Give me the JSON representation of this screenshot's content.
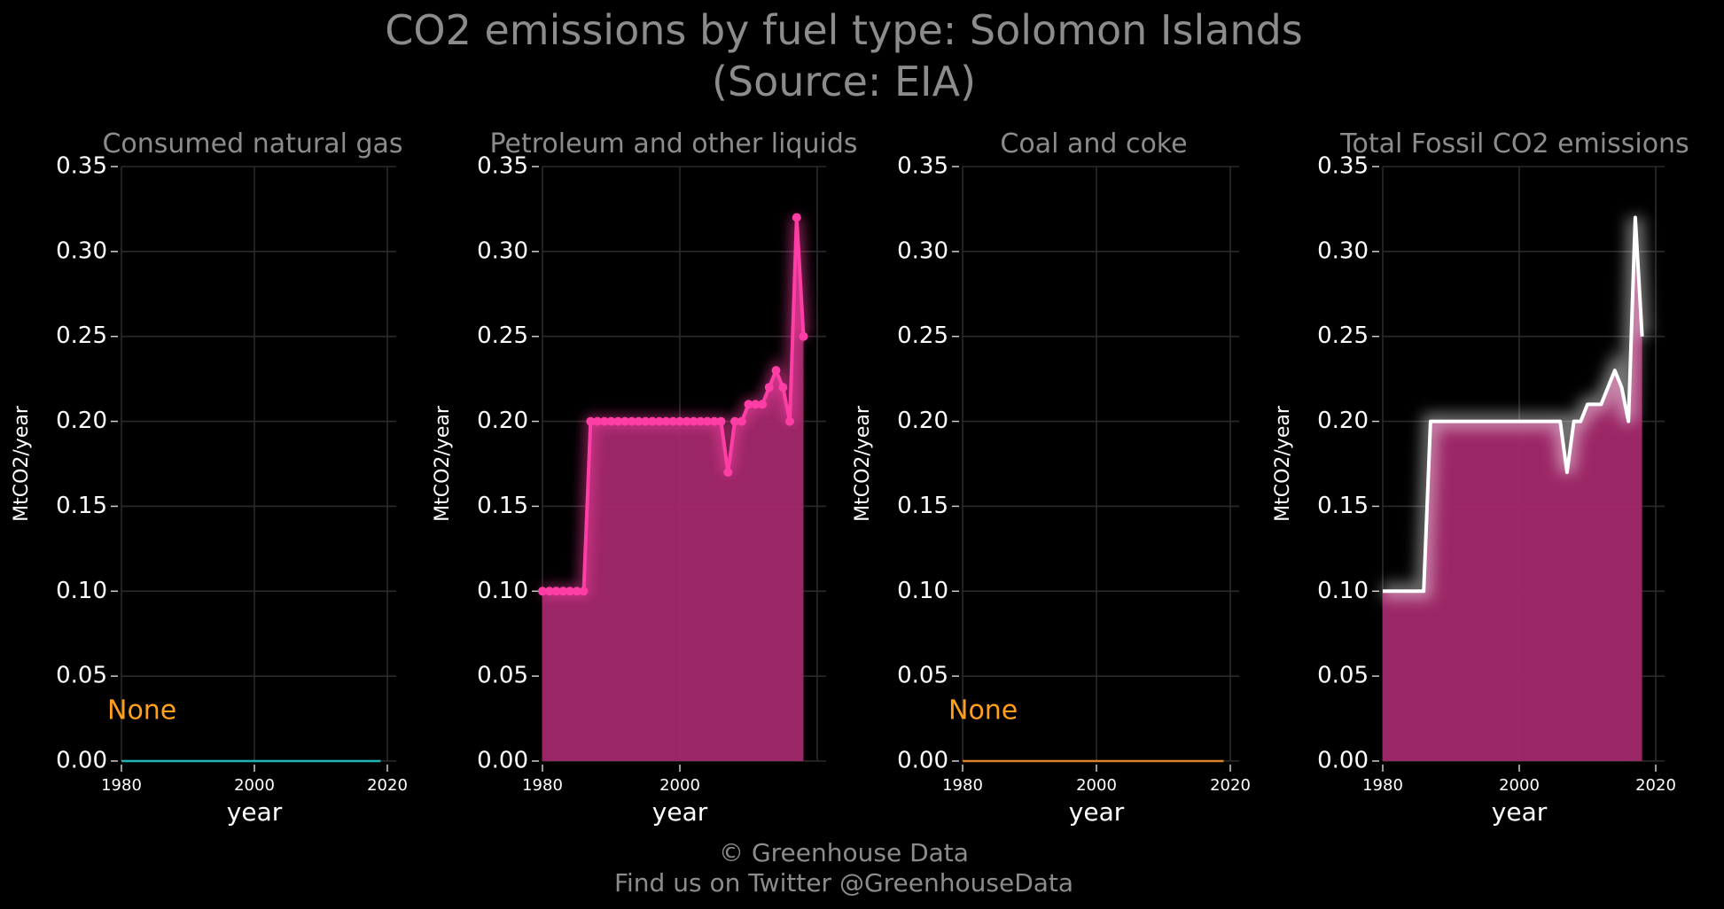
{
  "title_line1": "CO2 emissions by fuel type: Solomon Islands",
  "title_line2": "(Source: EIA)",
  "footer_line1": "© Greenhouse Data",
  "footer_line2": "Find us on Twitter @GreenhouseData",
  "none_text": "None",
  "colors": {
    "background": "#000000",
    "natural_gas": "#1fb5b5",
    "petroleum": "#ff3ea5",
    "coal": "#d9822b",
    "total": "#ffffff",
    "fill": "#a3286b",
    "none_label": "#ff9f1c"
  },
  "chart_data": [
    {
      "type": "line",
      "title": "Consumed natural gas",
      "xlabel": "year",
      "ylabel": "MtCO2/year",
      "xlim": [
        1980,
        2020
      ],
      "ylim": [
        0,
        0.35
      ],
      "xticks": [
        "1980",
        "2000",
        "2020"
      ],
      "yticks": [
        "0.00",
        "0.05",
        "0.10",
        "0.15",
        "0.20",
        "0.25",
        "0.30",
        "0.35"
      ],
      "grid": true,
      "annotation": "None",
      "series": [
        {
          "x": [
            1980,
            2019
          ],
          "y": [
            0,
            0
          ]
        }
      ]
    },
    {
      "type": "area",
      "title": "Petroleum and other liquids",
      "xlabel": "year",
      "ylabel": "MtCO2/year",
      "xlim": [
        1980,
        2020
      ],
      "ylim": [
        0,
        0.35
      ],
      "xticks": [
        "1980",
        "2000"
      ],
      "yticks": [
        "0.00",
        "0.05",
        "0.10",
        "0.15",
        "0.20",
        "0.25",
        "0.30",
        "0.35"
      ],
      "grid": true,
      "series": [
        {
          "x": [
            1980,
            1981,
            1982,
            1983,
            1984,
            1985,
            1986,
            1987,
            1988,
            1989,
            1990,
            1991,
            1992,
            1993,
            1994,
            1995,
            1996,
            1997,
            1998,
            1999,
            2000,
            2001,
            2002,
            2003,
            2004,
            2005,
            2006,
            2007,
            2008,
            2009,
            2010,
            2011,
            2012,
            2013,
            2014,
            2015,
            2016,
            2017,
            2018
          ],
          "y": [
            0.1,
            0.1,
            0.1,
            0.1,
            0.1,
            0.1,
            0.1,
            0.2,
            0.2,
            0.2,
            0.2,
            0.2,
            0.2,
            0.2,
            0.2,
            0.2,
            0.2,
            0.2,
            0.2,
            0.2,
            0.2,
            0.2,
            0.2,
            0.2,
            0.2,
            0.2,
            0.2,
            0.17,
            0.2,
            0.2,
            0.21,
            0.21,
            0.21,
            0.22,
            0.23,
            0.22,
            0.2,
            0.32,
            0.25
          ]
        }
      ]
    },
    {
      "type": "line",
      "title": "Coal and coke",
      "xlabel": "year",
      "ylabel": "MtCO2/year",
      "xlim": [
        1980,
        2020
      ],
      "ylim": [
        0,
        0.35
      ],
      "xticks": [
        "1980",
        "2000",
        "2020"
      ],
      "yticks": [
        "0.00",
        "0.05",
        "0.10",
        "0.15",
        "0.20",
        "0.25",
        "0.30",
        "0.35"
      ],
      "grid": true,
      "annotation": "None",
      "series": [
        {
          "x": [
            1980,
            2019
          ],
          "y": [
            0,
            0
          ]
        }
      ]
    },
    {
      "type": "area",
      "title": "Total Fossil CO2 emissions",
      "xlabel": "year",
      "ylabel": "MtCO2/year",
      "xlim": [
        1980,
        2020
      ],
      "ylim": [
        0,
        0.35
      ],
      "xticks": [
        "1980",
        "2000",
        "2020"
      ],
      "yticks": [
        "0.00",
        "0.05",
        "0.10",
        "0.15",
        "0.20",
        "0.25",
        "0.30",
        "0.35"
      ],
      "grid": true,
      "series": [
        {
          "x": [
            1980,
            1981,
            1982,
            1983,
            1984,
            1985,
            1986,
            1987,
            1988,
            1989,
            1990,
            1991,
            1992,
            1993,
            1994,
            1995,
            1996,
            1997,
            1998,
            1999,
            2000,
            2001,
            2002,
            2003,
            2004,
            2005,
            2006,
            2007,
            2008,
            2009,
            2010,
            2011,
            2012,
            2013,
            2014,
            2015,
            2016,
            2017,
            2018
          ],
          "y": [
            0.1,
            0.1,
            0.1,
            0.1,
            0.1,
            0.1,
            0.1,
            0.2,
            0.2,
            0.2,
            0.2,
            0.2,
            0.2,
            0.2,
            0.2,
            0.2,
            0.2,
            0.2,
            0.2,
            0.2,
            0.2,
            0.2,
            0.2,
            0.2,
            0.2,
            0.2,
            0.2,
            0.17,
            0.2,
            0.2,
            0.21,
            0.21,
            0.21,
            0.22,
            0.23,
            0.22,
            0.2,
            0.32,
            0.25
          ]
        }
      ]
    }
  ]
}
